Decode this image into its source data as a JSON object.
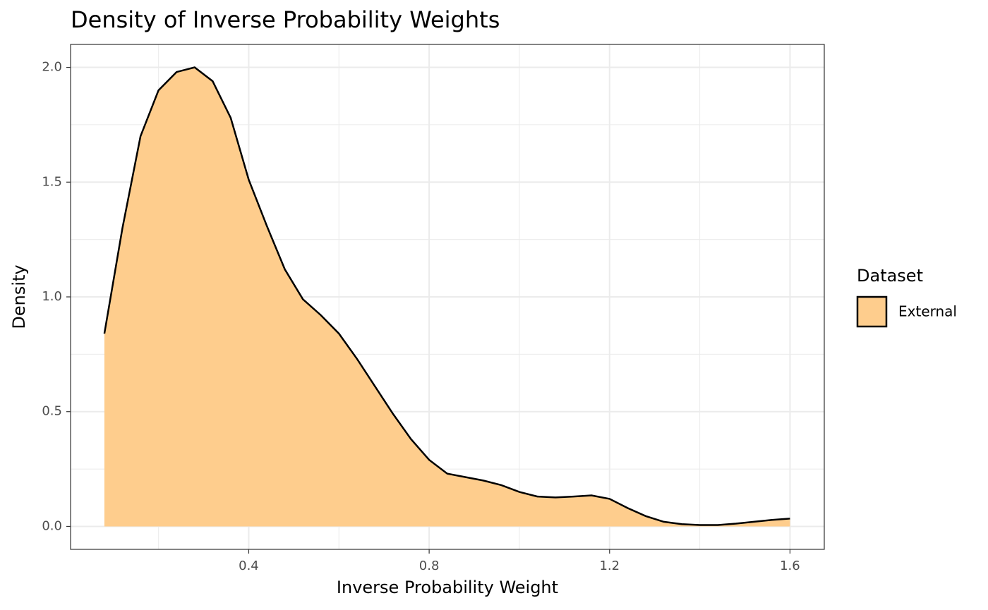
{
  "chart_data": {
    "type": "density",
    "title": "Density of Inverse Probability Weights",
    "x_label": "Inverse Probability Weight",
    "y_label": "Density",
    "legend_title": "Dataset",
    "x": [
      0.08,
      0.12,
      0.16,
      0.2,
      0.24,
      0.28,
      0.32,
      0.36,
      0.4,
      0.44,
      0.48,
      0.52,
      0.56,
      0.6,
      0.64,
      0.68,
      0.72,
      0.76,
      0.8,
      0.84,
      0.88,
      0.92,
      0.96,
      1.0,
      1.04,
      1.08,
      1.12,
      1.16,
      1.2,
      1.24,
      1.28,
      1.32,
      1.36,
      1.4,
      1.44,
      1.48,
      1.52,
      1.56,
      1.6
    ],
    "series": [
      {
        "name": "External",
        "color": "#fecd8d",
        "line_color": "#000000",
        "values": [
          0.84,
          1.3,
          1.7,
          1.9,
          1.98,
          2.0,
          1.94,
          1.78,
          1.51,
          1.31,
          1.12,
          0.99,
          0.92,
          0.84,
          0.73,
          0.61,
          0.49,
          0.38,
          0.29,
          0.23,
          0.215,
          0.2,
          0.18,
          0.15,
          0.13,
          0.126,
          0.13,
          0.135,
          0.12,
          0.08,
          0.045,
          0.02,
          0.01,
          0.006,
          0.006,
          0.012,
          0.02,
          0.028,
          0.034
        ]
      }
    ],
    "xlim": [
      0.005,
      1.676
    ],
    "ylim": [
      -0.1,
      2.1
    ],
    "xticks": [
      0.4,
      0.8,
      1.2,
      1.6
    ],
    "yticks": [
      {
        "value": 0,
        "label": "0.0"
      },
      0.5,
      {
        "value": 1,
        "label": "1.0"
      },
      1.5,
      {
        "value": 2,
        "label": "2.0"
      }
    ],
    "x_minor_ticks": [
      0.2,
      0.6,
      1.0,
      1.4
    ],
    "y_minor_ticks": [
      0.25,
      0.75,
      1.25,
      1.75
    ],
    "grid": true
  }
}
